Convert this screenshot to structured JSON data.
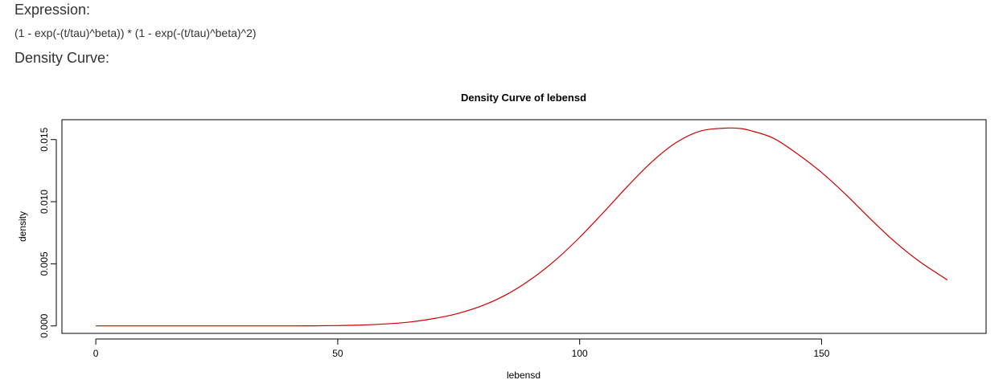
{
  "headings": {
    "expression": "Expression:",
    "density": "Density Curve:"
  },
  "expression_text": "(1 - exp(-(t/tau)^beta)) * (1 - exp(-(t/tau)^beta)^2)",
  "chart_data": {
    "type": "line",
    "title": "Density Curve of  lebensd",
    "xlabel": "lebensd",
    "ylabel": "density",
    "xlim": [
      -7,
      184
    ],
    "ylim": [
      -0.0006,
      0.0166
    ],
    "xticks": [
      0,
      50,
      100,
      150
    ],
    "yticks": [
      0.0,
      0.005,
      0.01,
      0.015
    ],
    "ytick_labels": [
      "0.000",
      "0.005",
      "0.010",
      "0.015"
    ],
    "grid": false,
    "line_color": "#cc0000",
    "series": [
      {
        "x": [
          0,
          10,
          20,
          30,
          40,
          45,
          50,
          55,
          60,
          65,
          70,
          75,
          80,
          85,
          90,
          95,
          100,
          105,
          110,
          115,
          120,
          125,
          130,
          133,
          135,
          140,
          145,
          150,
          155,
          160,
          165,
          170,
          176
        ],
        "y": [
          0,
          0,
          0,
          0,
          0,
          1e-05,
          3e-05,
          7e-05,
          0.00016,
          0.00032,
          0.0006,
          0.00102,
          0.00165,
          0.00255,
          0.00377,
          0.0053,
          0.00713,
          0.00917,
          0.01128,
          0.01323,
          0.01477,
          0.01569,
          0.01592,
          0.0159,
          0.01575,
          0.01512,
          0.01385,
          0.01235,
          0.01058,
          0.00865,
          0.00682,
          0.00525,
          0.0037
        ]
      }
    ]
  }
}
